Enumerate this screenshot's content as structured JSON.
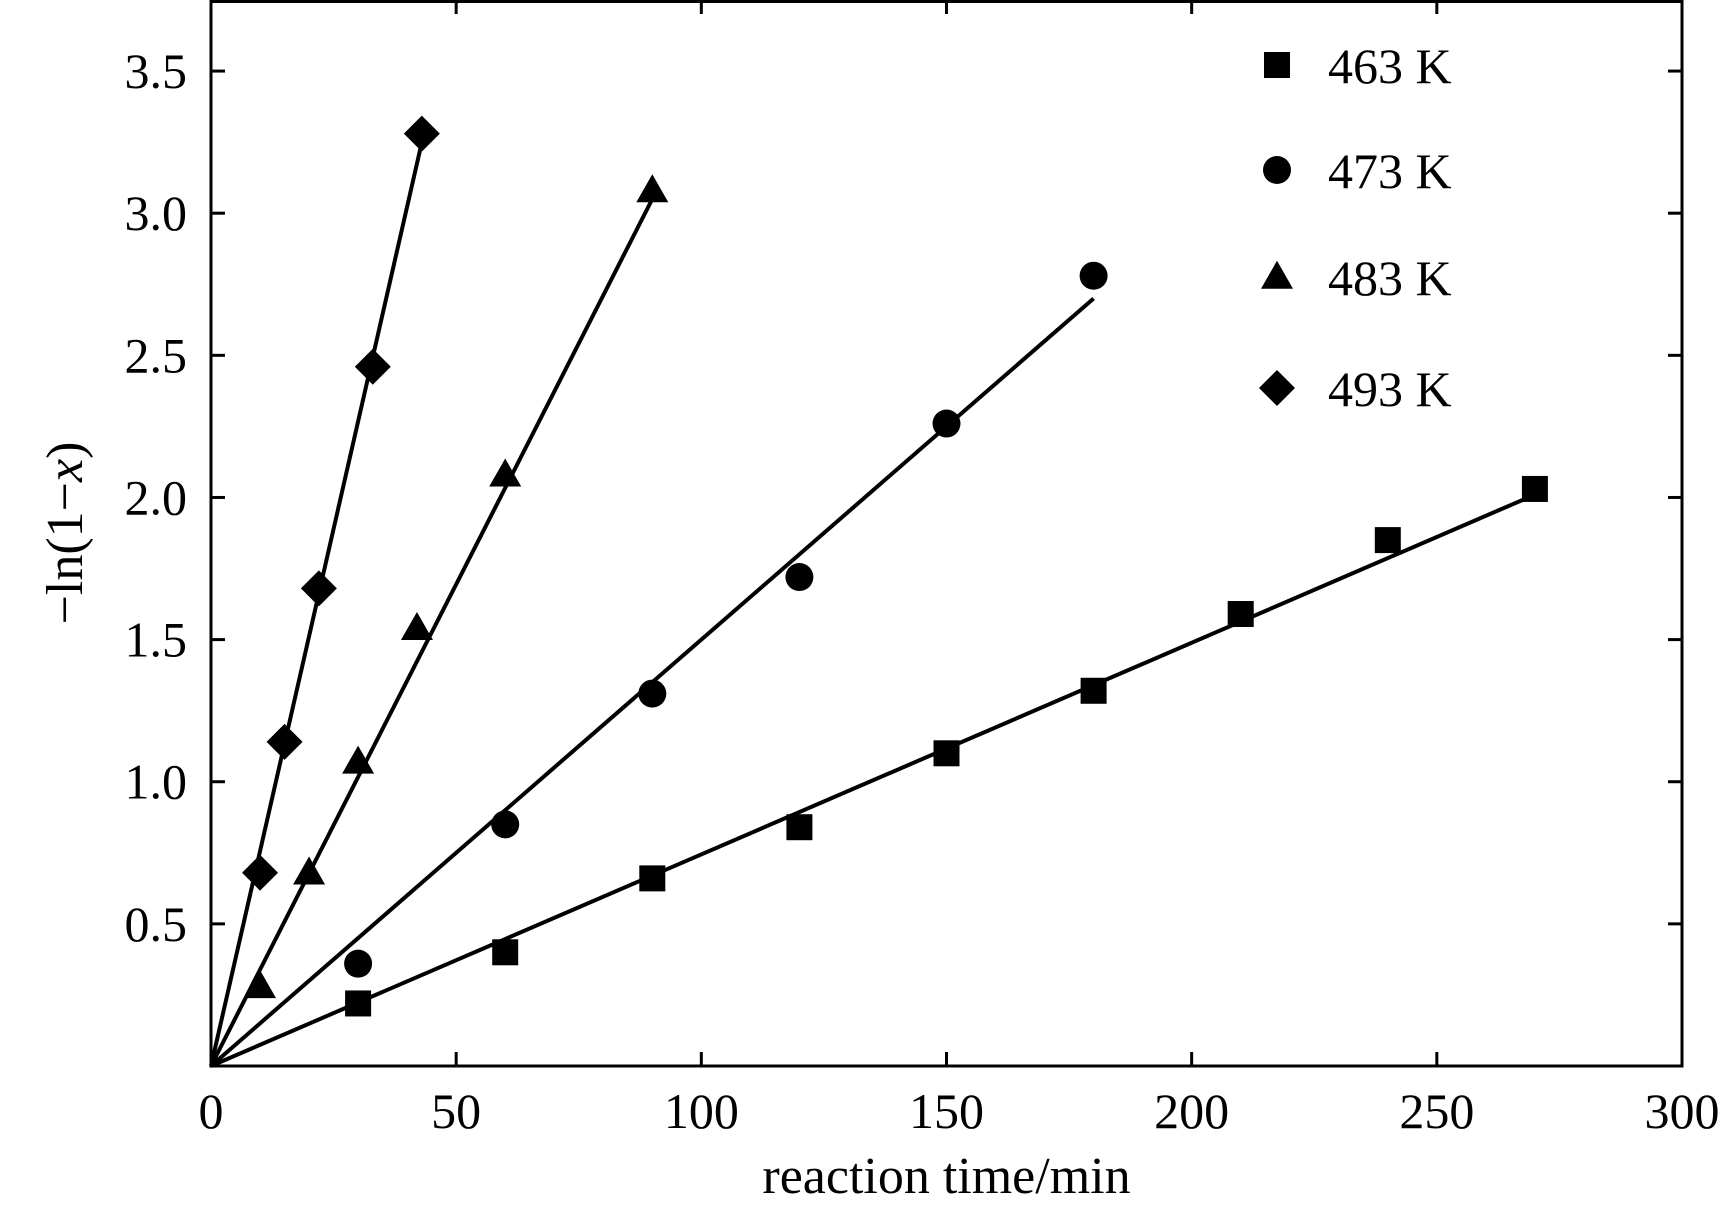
{
  "chart_data": {
    "type": "scatter",
    "title": "",
    "xlabel": "reaction time/min",
    "ylabel_parts": [
      "−ln(1−",
      "x",
      ")"
    ],
    "xlim": [
      0,
      300
    ],
    "ylim": [
      0,
      3.75
    ],
    "x_ticks": [
      0,
      50,
      100,
      150,
      200,
      250,
      300
    ],
    "x_tick_labels": [
      "0",
      "50",
      "100",
      "150",
      "200",
      "250",
      "300"
    ],
    "y_ticks": [
      0.5,
      1.0,
      1.5,
      2.0,
      2.5,
      3.0,
      3.5
    ],
    "y_tick_labels": [
      "0.5",
      "1.0",
      "1.5",
      "2.0",
      "2.5",
      "3.0",
      "3.5"
    ],
    "grid": false,
    "legend_position": "top-right",
    "series": [
      {
        "name": "463 K",
        "marker": "square",
        "x": [
          30,
          60,
          90,
          120,
          150,
          180,
          210,
          240,
          270
        ],
        "y": [
          0.22,
          0.4,
          0.66,
          0.84,
          1.1,
          1.32,
          1.59,
          1.85,
          2.03
        ],
        "fit_line": {
          "x": [
            0,
            270
          ],
          "y": [
            0,
            2.01
          ]
        }
      },
      {
        "name": "473 K",
        "marker": "circle",
        "x": [
          30,
          60,
          90,
          120,
          150,
          180
        ],
        "y": [
          0.36,
          0.85,
          1.31,
          1.72,
          2.26,
          2.78
        ],
        "fit_line": {
          "x": [
            0,
            180
          ],
          "y": [
            0,
            2.7
          ]
        }
      },
      {
        "name": "483 K",
        "marker": "triangle",
        "x": [
          10,
          20,
          30,
          42,
          60,
          90
        ],
        "y": [
          0.28,
          0.68,
          1.07,
          1.54,
          2.08,
          3.08
        ],
        "fit_line": {
          "x": [
            0,
            90
          ],
          "y": [
            0,
            3.05
          ]
        }
      },
      {
        "name": "493 K",
        "marker": "diamond",
        "x": [
          10,
          15,
          22,
          33,
          43
        ],
        "y": [
          0.68,
          1.14,
          1.68,
          2.46,
          3.28
        ],
        "fit_line": {
          "x": [
            0,
            43
          ],
          "y": [
            0,
            3.25
          ]
        }
      }
    ],
    "colors": {
      "marker": "#000000",
      "line": "#000000",
      "axis": "#000000"
    }
  }
}
